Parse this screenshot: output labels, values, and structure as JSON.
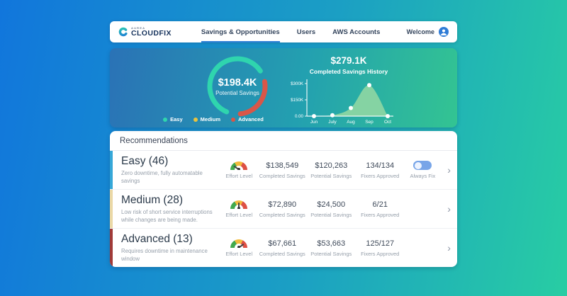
{
  "header": {
    "brand_small": "AUREA",
    "brand": "CLOUDFIX",
    "nav": [
      "Savings & Opportunities",
      "Users",
      "AWS Accounts"
    ],
    "welcome": "Welcome"
  },
  "hero": {
    "donut_value": "$198.4K",
    "donut_label": "Potential Savings",
    "legend": [
      {
        "label": "Easy",
        "color": "#2fd5ae"
      },
      {
        "label": "Medium",
        "color": "#e9c33f"
      },
      {
        "label": "Advanced",
        "color": "#d95648"
      }
    ],
    "history_value": "$279.1K",
    "history_title": "Completed Savings History"
  },
  "chart_data": [
    {
      "type": "pie",
      "title": "Potential Savings",
      "center_label": "$198.4K",
      "categories": [
        "Easy",
        "Medium",
        "Advanced"
      ],
      "values": [
        120263,
        24500,
        53663
      ],
      "colors": [
        "#2fd5ae",
        "#e9c33f",
        "#d95648"
      ],
      "arcs": [
        {
          "start": 203,
          "sweep": 213,
          "color": "#2fd5ae"
        },
        {
          "start": 80,
          "sweep": 94,
          "color": "#d95648"
        }
      ]
    },
    {
      "type": "area",
      "title": "$279.1K",
      "subtitle": "Completed Savings History",
      "x": [
        "Jun",
        "July",
        "Aug",
        "Sep",
        "Oct"
      ],
      "values": [
        0,
        8000,
        75000,
        285000,
        0
      ],
      "ylim": [
        0,
        300000
      ],
      "yticks": [
        {
          "label": "$300K",
          "value": 300000
        },
        {
          "label": "$150K",
          "value": 150000
        },
        {
          "label": "0.00",
          "value": 0
        }
      ],
      "fill": "#85d3a3"
    }
  ],
  "recommendations": {
    "title": "Recommendations",
    "effort_label": "Effort Level",
    "chevron": "›",
    "rows": [
      {
        "title": "Easy (46)",
        "desc": "Zero downtime, fully automatable savings",
        "completed": "$138,549",
        "completed_label": "Completed Savings",
        "potential": "$120,263",
        "potential_label": "Potential Savings",
        "fixers": "134/134",
        "fixers_label": "Fixers Approved",
        "toggle_label": "Always Fix",
        "toggle_on": true,
        "accent": "#35a7d8",
        "effort": "low"
      },
      {
        "title": "Medium (28)",
        "desc": "Low risk of short service interruptions while changes are being made.",
        "completed": "$72,890",
        "completed_label": "Completed Savings",
        "potential": "$24,500",
        "potential_label": "Potential Savings",
        "fixers": "6/21",
        "fixers_label": "Fixers Approved",
        "accent": "#ead8a6",
        "effort": "medium"
      },
      {
        "title": "Advanced (13)",
        "desc": "Requires downtime in maintenance window",
        "completed": "$67,661",
        "completed_label": "Completed Savings",
        "potential": "$53,663",
        "potential_label": "Potential Savings",
        "fixers": "125/127",
        "fixers_label": "Fixers Approved",
        "accent": "#a03a38",
        "effort": "high"
      }
    ]
  }
}
